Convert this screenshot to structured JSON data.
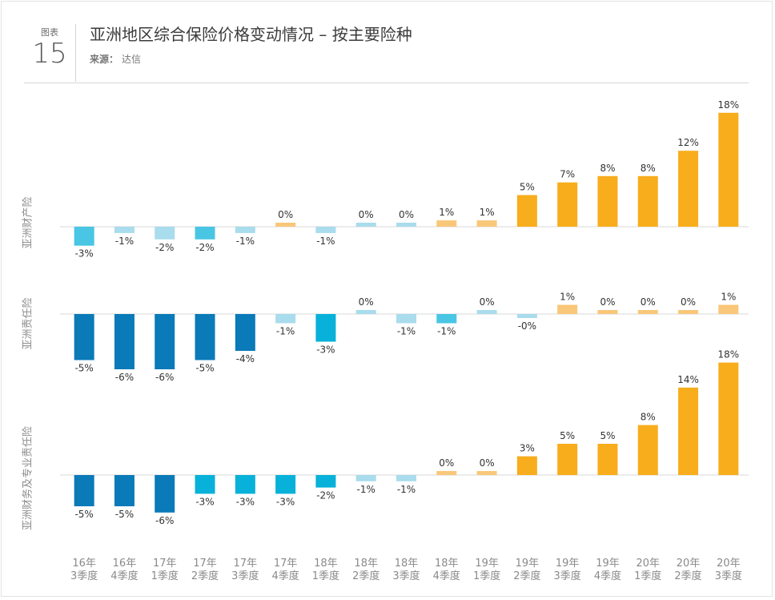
{
  "header": {
    "figure_label": "图表",
    "figure_number": "15",
    "title": "亚洲地区综合保险价格变动情况 – 按主要险种",
    "source_label": "来源：",
    "source_text": "达信"
  },
  "colors": {
    "dark_blue": "#0a7ab8",
    "mid_blue": "#07b1d9",
    "cyan": "#49c6e3",
    "light_blue": "#a9dcec",
    "light_orange": "#f9c779",
    "orange": "#f8ad1c"
  },
  "chart_data": {
    "type": "bar",
    "categories": [
      [
        "16年",
        "3季度"
      ],
      [
        "16年",
        "4季度"
      ],
      [
        "17年",
        "1季度"
      ],
      [
        "17年",
        "2季度"
      ],
      [
        "17年",
        "3季度"
      ],
      [
        "17年",
        "4季度"
      ],
      [
        "18年",
        "1季度"
      ],
      [
        "18年",
        "2季度"
      ],
      [
        "18年",
        "3季度"
      ],
      [
        "18年",
        "4季度"
      ],
      [
        "19年",
        "1季度"
      ],
      [
        "19年",
        "2季度"
      ],
      [
        "19年",
        "3季度"
      ],
      [
        "19年",
        "4季度"
      ],
      [
        "20年",
        "1季度"
      ],
      [
        "20年",
        "2季度"
      ],
      [
        "20年",
        "3季度"
      ]
    ],
    "panels": [
      {
        "name": "亚洲财产险",
        "values": [
          -3,
          -1,
          -2,
          -2,
          -1,
          0,
          -1,
          0,
          0,
          1,
          1,
          5,
          7,
          8,
          8,
          12,
          18
        ],
        "labels": [
          "-3%",
          "-1%",
          "-2%",
          "-2%",
          "-1%",
          "0%",
          "-1%",
          "0%",
          "0%",
          "1%",
          "1%",
          "5%",
          "7%",
          "8%",
          "8%",
          "12%",
          "18%"
        ],
        "colors": [
          "cyan",
          "light_blue",
          "light_blue",
          "cyan",
          "light_blue",
          "light_orange",
          "light_blue",
          "light_blue",
          "light_blue",
          "light_orange",
          "light_orange",
          "orange",
          "orange",
          "orange",
          "orange",
          "orange",
          "orange"
        ]
      },
      {
        "name": "亚洲责任险",
        "values": [
          -5,
          -6,
          -6,
          -5,
          -4,
          -1,
          -3,
          0,
          -1,
          -1,
          0,
          -0.3,
          1,
          0,
          0,
          0,
          1
        ],
        "labels": [
          "-5%",
          "-6%",
          "-6%",
          "-5%",
          "-4%",
          "-1%",
          "-3%",
          "0%",
          "-1%",
          "-1%",
          "0%",
          "-0%",
          "1%",
          "0%",
          "0%",
          "0%",
          "1%"
        ],
        "colors": [
          "dark_blue",
          "dark_blue",
          "dark_blue",
          "dark_blue",
          "dark_blue",
          "light_blue",
          "mid_blue",
          "light_blue",
          "light_blue",
          "cyan",
          "light_blue",
          "light_blue",
          "light_orange",
          "light_orange",
          "light_orange",
          "light_orange",
          "light_orange"
        ]
      },
      {
        "name": "亚洲财务及专业责任险",
        "values": [
          -5,
          -5,
          -6,
          -3,
          -3,
          -3,
          -2,
          -1,
          -1,
          0,
          0,
          3,
          5,
          5,
          8,
          14,
          18
        ],
        "labels": [
          "-5%",
          "-5%",
          "-6%",
          "-3%",
          "-3%",
          "-3%",
          "-2%",
          "-1%",
          "-1%",
          "0%",
          "0%",
          "3%",
          "5%",
          "5%",
          "8%",
          "14%",
          "18%"
        ],
        "colors": [
          "dark_blue",
          "dark_blue",
          "dark_blue",
          "mid_blue",
          "mid_blue",
          "mid_blue",
          "mid_blue",
          "light_blue",
          "light_blue",
          "light_orange",
          "light_orange",
          "orange",
          "orange",
          "orange",
          "orange",
          "orange",
          "orange"
        ]
      }
    ]
  }
}
